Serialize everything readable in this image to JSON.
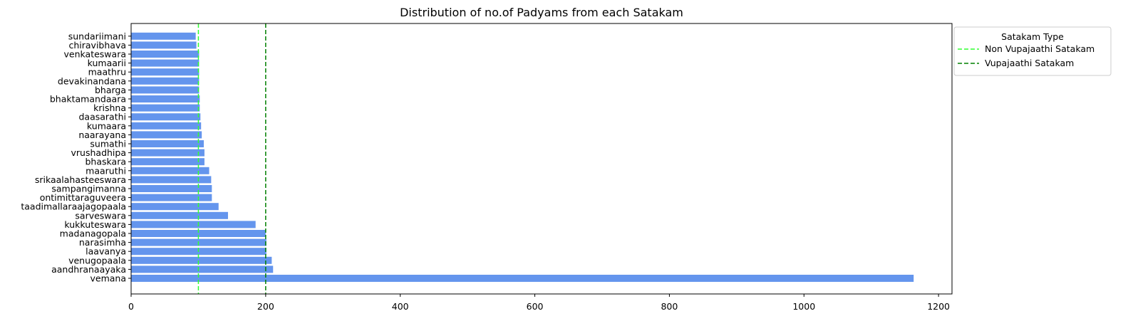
{
  "chart_data": {
    "type": "bar",
    "orientation": "horizontal",
    "title": "Distribution of no.of Padyams from each Satakam",
    "xlabel": "",
    "ylabel": "",
    "xlim": [
      0,
      1220
    ],
    "xticks": [
      0,
      200,
      400,
      600,
      800,
      1000,
      1200
    ],
    "bar_color": "#6495ED",
    "categories": [
      "vemana",
      "aandhranaayaka",
      "venugopaala",
      "laavanya",
      "narasimha",
      "madanagopala",
      "kukkuteswara",
      "sarveswara",
      "taadimallaraajagopaala",
      "ontimittaraguveera",
      "sampangimanna",
      "srikaalahasteeswara",
      "maaruthi",
      "bhaskara",
      "vrushadhipa",
      "sumathi",
      "naarayana",
      "kumaara",
      "daasarathi",
      "krishna",
      "bhaktamandaara",
      "bharga",
      "devakinandana",
      "maathru",
      "kumaarii",
      "venkateswara",
      "chiravibhava",
      "sundariimani"
    ],
    "values": [
      1163,
      211,
      209,
      201,
      201,
      200,
      185,
      144,
      130,
      120,
      120,
      119,
      116,
      109,
      109,
      108,
      105,
      104,
      103,
      102,
      102,
      101,
      101,
      101,
      101,
      101,
      97,
      96
    ],
    "reference_lines": [
      {
        "name": "Non Vupajaathi Satakam",
        "x": 100,
        "color": "#32FF32",
        "style": "dashed"
      },
      {
        "name": "Vupajaathi Satakam",
        "x": 200,
        "color": "#008000",
        "style": "dashed"
      }
    ],
    "legend": {
      "title": "Satakam Type",
      "placement": "outside-top-right"
    },
    "grid": false
  }
}
